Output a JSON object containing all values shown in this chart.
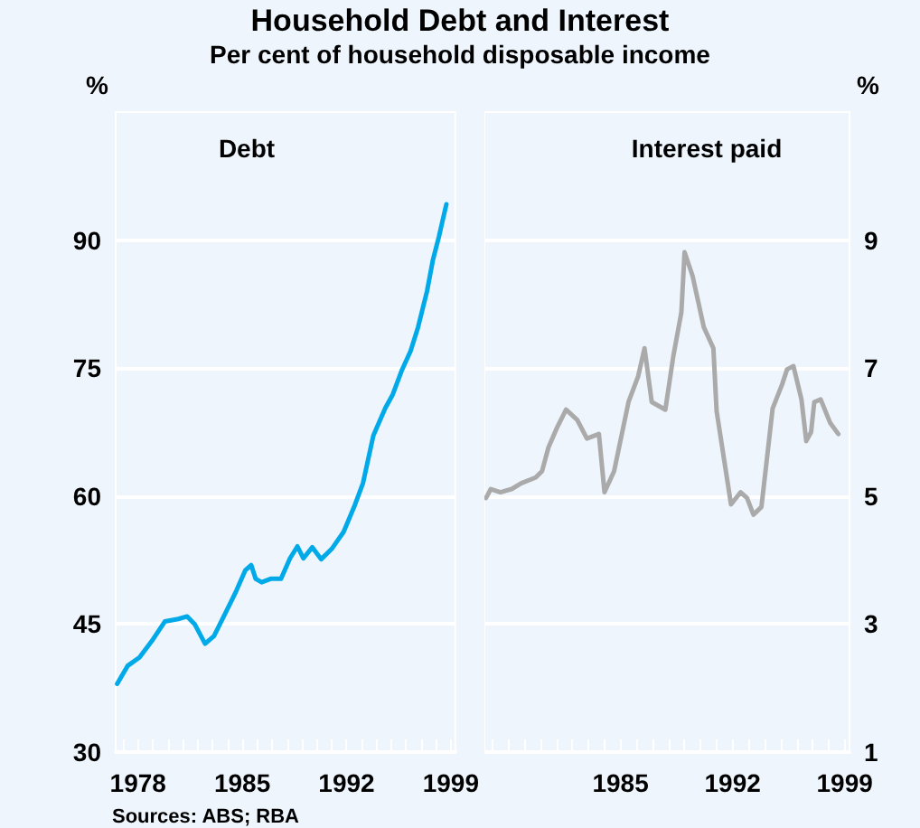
{
  "chart_data": [
    {
      "type": "line",
      "title": "Household Debt and Interest",
      "subtitle": "Per cent of household disposable income",
      "ylabel": "%",
      "xlim": [
        1976.5,
        1999.3
      ],
      "xticks": [
        {
          "value": 1977,
          "label": null
        },
        1978,
        {
          "value": 1979,
          "label": null
        },
        {
          "value": 1980,
          "label": null
        },
        {
          "value": 1981,
          "label": null
        },
        {
          "value": 1982,
          "label": null
        },
        {
          "value": 1983,
          "label": null
        },
        {
          "value": 1984,
          "label": null
        },
        1985,
        {
          "value": 1986,
          "label": null
        },
        {
          "value": 1987,
          "label": null
        },
        {
          "value": 1988,
          "label": null
        },
        {
          "value": 1989,
          "label": null
        },
        {
          "value": 1990,
          "label": null
        },
        {
          "value": 1991,
          "label": null
        },
        1992,
        {
          "value": 1993,
          "label": null
        },
        {
          "value": 1994,
          "label": null
        },
        {
          "value": 1995,
          "label": null
        },
        {
          "value": 1996,
          "label": null
        },
        {
          "value": 1997,
          "label": null
        },
        {
          "value": 1998,
          "label": null
        },
        1999
      ],
      "ylim": [
        30,
        105
      ],
      "yticks": [
        30,
        45,
        60,
        75,
        90
      ],
      "grid": "y",
      "legend": "top",
      "marker": "none",
      "line_style": "solid",
      "annotations": [
        "Sources: ABS; RBA"
      ],
      "series": [
        {
          "name": "Debt",
          "color": "#00a9e8",
          "x": [
            1976.6,
            1977.3,
            1978.1,
            1979.0,
            1979.8,
            1980.7,
            1981.3,
            1981.8,
            1982.5,
            1983.1,
            1983.9,
            1984.6,
            1985.2,
            1985.6,
            1985.9,
            1986.3,
            1986.9,
            1987.6,
            1988.2,
            1988.7,
            1989.1,
            1989.7,
            1990.3,
            1991.0,
            1991.4,
            1991.8,
            1992.5,
            1993.1,
            1993.8,
            1994.6,
            1995.1,
            1995.7,
            1996.3,
            1996.8,
            1997.4,
            1997.8,
            1998.2,
            1998.7
          ],
          "values": [
            38.0,
            40.1,
            41.1,
            43.2,
            45.3,
            45.6,
            45.9,
            45.0,
            42.7,
            43.6,
            46.4,
            48.9,
            51.3,
            51.9,
            50.3,
            49.9,
            50.3,
            50.3,
            52.7,
            54.1,
            52.7,
            54.0,
            52.6,
            53.8,
            54.8,
            55.8,
            58.7,
            61.5,
            67.1,
            70.3,
            71.9,
            74.7,
            77.0,
            79.8,
            84.0,
            87.7,
            90.4,
            94.2
          ]
        }
      ]
    },
    {
      "type": "line",
      "y2label": "%",
      "xlim": [
        1976.5,
        1999.3
      ],
      "xticks": [
        {
          "value": 1977,
          "label": null
        },
        {
          "value": 1978,
          "label": null
        },
        {
          "value": 1979,
          "label": null
        },
        {
          "value": 1980,
          "label": null
        },
        {
          "value": 1981,
          "label": null
        },
        {
          "value": 1982,
          "label": null
        },
        {
          "value": 1983,
          "label": null
        },
        {
          "value": 1984,
          "label": null
        },
        1985,
        {
          "value": 1986,
          "label": null
        },
        {
          "value": 1987,
          "label": null
        },
        {
          "value": 1988,
          "label": null
        },
        {
          "value": 1989,
          "label": null
        },
        {
          "value": 1990,
          "label": null
        },
        {
          "value": 1991,
          "label": null
        },
        1992,
        {
          "value": 1993,
          "label": null
        },
        {
          "value": 1994,
          "label": null
        },
        {
          "value": 1995,
          "label": null
        },
        {
          "value": 1996,
          "label": null
        },
        {
          "value": 1997,
          "label": null
        },
        {
          "value": 1998,
          "label": null
        },
        1999
      ],
      "y2lim": [
        1,
        11
      ],
      "y2ticks": [
        1,
        3,
        5,
        7,
        9
      ],
      "grid": "y",
      "legend": "top",
      "marker": "none",
      "line_style": "solid",
      "series": [
        {
          "name": "Interest paid",
          "color": "#aaaaaa",
          "axis": "y2",
          "x": [
            1976.6,
            1976.9,
            1977.5,
            1978.2,
            1978.8,
            1979.7,
            1980.1,
            1980.5,
            1981.0,
            1981.6,
            1982.3,
            1982.9,
            1983.65,
            1984.0,
            1984.6,
            1985.5,
            1986.1,
            1986.5,
            1986.95,
            1987.8,
            1988.3,
            1988.8,
            1989.0,
            1989.5,
            1990.2,
            1990.8,
            1991.0,
            1991.9,
            1992.5,
            1992.9,
            1993.3,
            1993.8,
            1994.5,
            1995.1,
            1995.4,
            1995.8,
            1996.3,
            1996.6,
            1996.9,
            1997.1,
            1997.5,
            1998.1,
            1998.6
          ],
          "values": [
            4.97,
            5.11,
            5.06,
            5.11,
            5.2,
            5.29,
            5.39,
            5.76,
            6.05,
            6.35,
            6.19,
            5.9,
            5.97,
            5.06,
            5.39,
            6.47,
            6.87,
            7.31,
            6.47,
            6.35,
            7.19,
            7.87,
            8.81,
            8.44,
            7.64,
            7.31,
            6.33,
            4.87,
            5.06,
            4.97,
            4.71,
            4.83,
            6.37,
            6.75,
            6.98,
            7.03,
            6.51,
            5.86,
            6.0,
            6.47,
            6.51,
            6.14,
            5.97
          ]
        }
      ]
    }
  ]
}
